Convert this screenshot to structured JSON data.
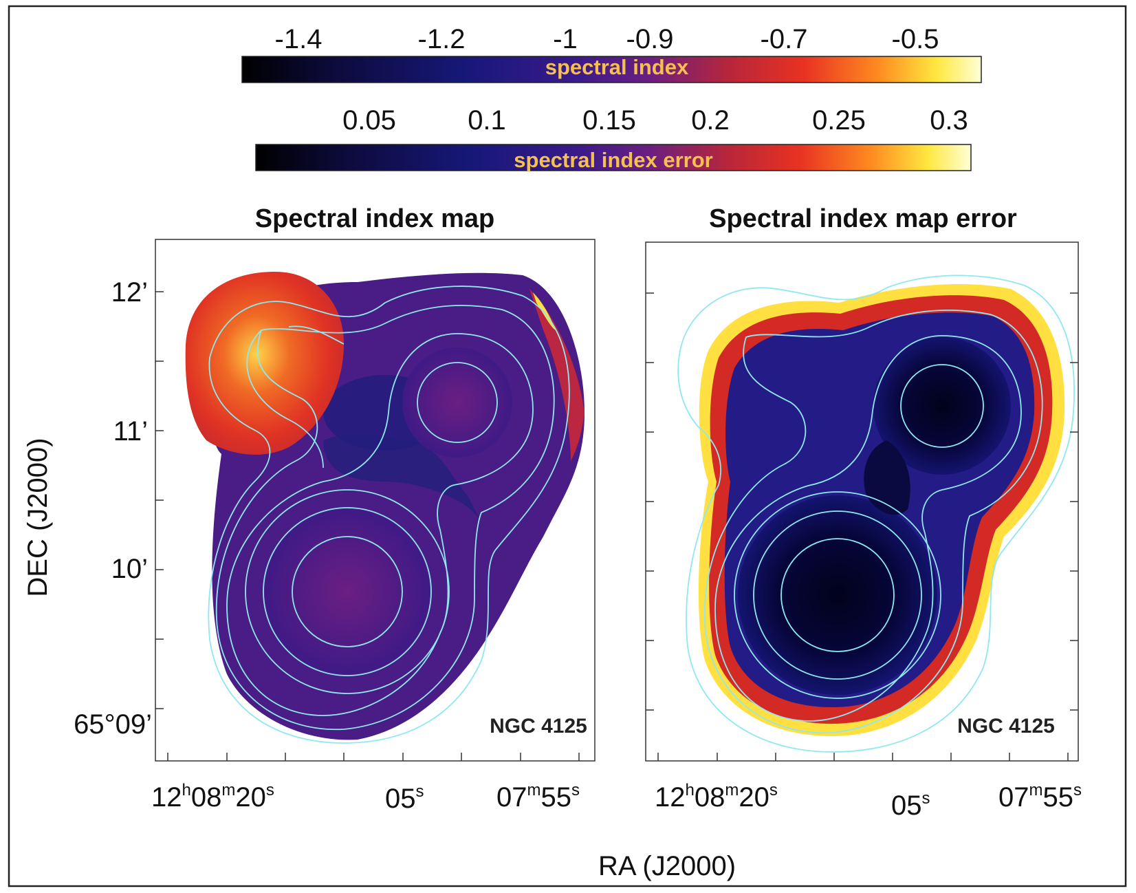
{
  "chart_data": [
    {
      "type": "heatmap",
      "panel": "left",
      "title": "Spectral index map",
      "source_label": "NGC 4125",
      "quantity": "spectral index",
      "xlabel": "RA (J2000)",
      "ylabel": "DEC (J2000)",
      "x_tick_labels": [
        {
          "h": "12",
          "hs": "h",
          "m": "08",
          "ms": "m",
          "s": "20",
          "ss": "s"
        },
        {
          "h": "",
          "hs": "",
          "m": "",
          "ms": "",
          "s": "05",
          "ss": "s"
        },
        {
          "h": "",
          "hs": "",
          "m": "07",
          "ms": "m",
          "s": "55",
          "ss": "s"
        }
      ],
      "y_tick_labels": [
        "12’",
        "11’",
        "10’",
        "65°09’"
      ],
      "colorbar": {
        "label": "spectral index",
        "ticks": [
          "-1.4",
          "-1.2",
          "-1",
          "-0.9",
          "-0.7",
          "-0.5"
        ],
        "range": [
          -1.5,
          -0.4
        ]
      },
      "features": [
        {
          "name": "north-west lobe",
          "value": -0.65
        },
        {
          "name": "south core",
          "value": -1.05
        },
        {
          "name": "north-east core",
          "value": -1.05
        },
        {
          "name": "bridge",
          "value": -1.2
        }
      ]
    },
    {
      "type": "heatmap",
      "panel": "right",
      "title": "Spectral index map error",
      "source_label": "NGC 4125",
      "quantity": "spectral index error",
      "xlabel": "RA (J2000)",
      "ylabel": "DEC (J2000)",
      "x_tick_labels": [
        {
          "h": "12",
          "hs": "h",
          "m": "08",
          "ms": "m",
          "s": "20",
          "ss": "s"
        },
        {
          "h": "",
          "hs": "",
          "m": "",
          "ms": "",
          "s": "05",
          "ss": "s"
        },
        {
          "h": "",
          "hs": "",
          "m": "07",
          "ms": "m",
          "s": "55",
          "ss": "s"
        }
      ],
      "colorbar": {
        "label": "spectral index error",
        "ticks": [
          "0.05",
          "0.1",
          "0.15",
          "0.2",
          "0.25",
          "0.3"
        ],
        "range": [
          0.0,
          0.33
        ]
      },
      "features": [
        {
          "name": "south core",
          "value": 0.02
        },
        {
          "name": "north-east core",
          "value": 0.02
        },
        {
          "name": "outer edge",
          "value": 0.3
        }
      ]
    }
  ],
  "colors": {
    "colormap": [
      "#000000",
      "#0d0a3a",
      "#161878",
      "#3a1a8a",
      "#6a1f80",
      "#a8243a",
      "#e03020",
      "#ff7a20",
      "#ffe040",
      "#ffffd0"
    ],
    "contour": "#8fe8f0"
  }
}
